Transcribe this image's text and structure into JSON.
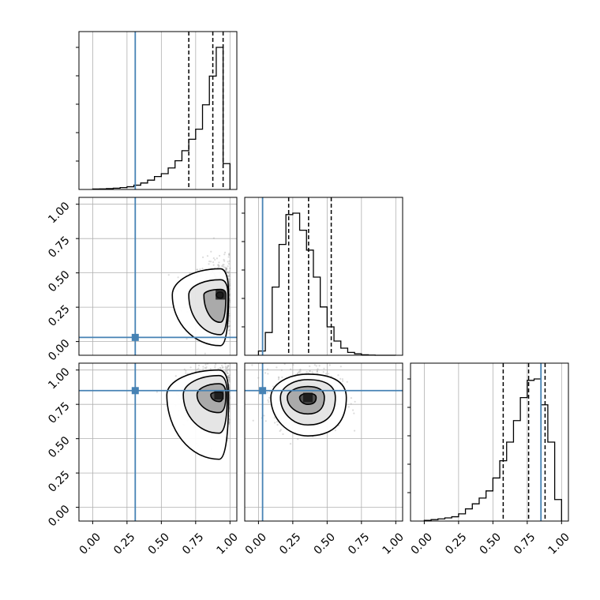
{
  "chart_data": {
    "type": "corner",
    "parameters": 3,
    "axis_range": [
      -0.1,
      1.05
    ],
    "tick_values": [
      0.0,
      0.25,
      0.5,
      0.75,
      1.0
    ],
    "tick_labels": [
      "0.00",
      "0.25",
      "0.50",
      "0.75",
      "1.00"
    ],
    "grid": true,
    "truth_color": "#4682b4",
    "hist_color": "#000000",
    "truths": [
      0.31,
      0.03,
      0.85
    ],
    "quantiles": [
      [
        0.7,
        0.875,
        0.95
      ],
      [
        0.22,
        0.365,
        0.53
      ],
      [
        0.575,
        0.76,
        0.88
      ]
    ],
    "histograms": [
      {
        "bin_edges": [
          0.0,
          0.05,
          0.1,
          0.15,
          0.2,
          0.25,
          0.3,
          0.35,
          0.4,
          0.45,
          0.5,
          0.55,
          0.6,
          0.65,
          0.7,
          0.75,
          0.8,
          0.85,
          0.9,
          0.95,
          1.0
        ],
        "counts": [
          0.003,
          0.004,
          0.006,
          0.009,
          0.013,
          0.019,
          0.03,
          0.045,
          0.065,
          0.09,
          0.11,
          0.15,
          0.2,
          0.27,
          0.35,
          0.42,
          0.59,
          0.79,
          0.99,
          0.18
        ]
      },
      {
        "bin_edges": [
          0.0,
          0.05,
          0.1,
          0.15,
          0.2,
          0.25,
          0.3,
          0.35,
          0.4,
          0.45,
          0.5,
          0.55,
          0.6,
          0.65,
          0.7,
          0.75,
          0.8,
          0.85,
          0.9,
          0.95,
          1.0
        ],
        "counts": [
          0.03,
          0.16,
          0.48,
          0.78,
          0.99,
          1.0,
          0.88,
          0.74,
          0.55,
          0.34,
          0.2,
          0.1,
          0.05,
          0.02,
          0.01,
          0.003,
          0.001,
          0.0,
          0.0,
          0.0
        ]
      },
      {
        "bin_edges": [
          0.0,
          0.05,
          0.1,
          0.15,
          0.2,
          0.25,
          0.3,
          0.35,
          0.4,
          0.45,
          0.5,
          0.55,
          0.6,
          0.65,
          0.7,
          0.75,
          0.8,
          0.85,
          0.9,
          0.95,
          1.0
        ],
        "counts": [
          0.005,
          0.01,
          0.015,
          0.022,
          0.03,
          0.05,
          0.085,
          0.12,
          0.16,
          0.21,
          0.3,
          0.42,
          0.55,
          0.7,
          0.86,
          0.98,
          0.99,
          0.81,
          0.55,
          0.15
        ]
      }
    ],
    "pairs": [
      {
        "x_param": 0,
        "y_param": 1,
        "center": [
          0.93,
          0.34
        ],
        "contours": [
          {
            "level": 1,
            "radii": [
              0.02,
              0.03,
              0.02,
              0.025
            ]
          },
          {
            "level": 2,
            "radii": [
              0.04,
              0.12,
              0.04,
              0.2
            ]
          },
          {
            "level": 3,
            "radii": [
              0.055,
              0.23,
              0.11,
              0.29
            ]
          },
          {
            "level": 4,
            "radii": [
              0.06,
              0.35,
              0.19,
              0.37
            ]
          }
        ],
        "scatter_spread": [
          0.18,
          0.18
        ]
      },
      {
        "x_param": 0,
        "y_param": 2,
        "center": [
          0.92,
          0.82
        ],
        "contours": [
          {
            "level": 1,
            "radii": [
              0.03,
              0.06,
              0.02,
              0.05
            ]
          },
          {
            "level": 2,
            "radii": [
              0.05,
              0.16,
              0.08,
              0.13
            ]
          },
          {
            "level": 3,
            "radii": [
              0.06,
              0.26,
              0.14,
              0.28
            ]
          },
          {
            "level": 4,
            "radii": [
              0.07,
              0.38,
              0.18,
              0.47
            ]
          }
        ],
        "scatter_spread": [
          0.2,
          0.18
        ]
      },
      {
        "x_param": 1,
        "y_param": 2,
        "center": [
          0.36,
          0.8
        ],
        "contours": [
          {
            "level": 1,
            "radii": [
              0.06,
              0.06,
              0.03,
              0.05
            ]
          },
          {
            "level": 2,
            "radii": [
              0.12,
              0.15,
              0.08,
              0.12
            ]
          },
          {
            "level": 3,
            "radii": [
              0.2,
              0.2,
              0.13,
              0.2
            ]
          },
          {
            "level": 4,
            "radii": [
              0.28,
              0.27,
              0.17,
              0.28
            ]
          }
        ],
        "scatter_spread": [
          0.2,
          0.16
        ]
      }
    ]
  }
}
